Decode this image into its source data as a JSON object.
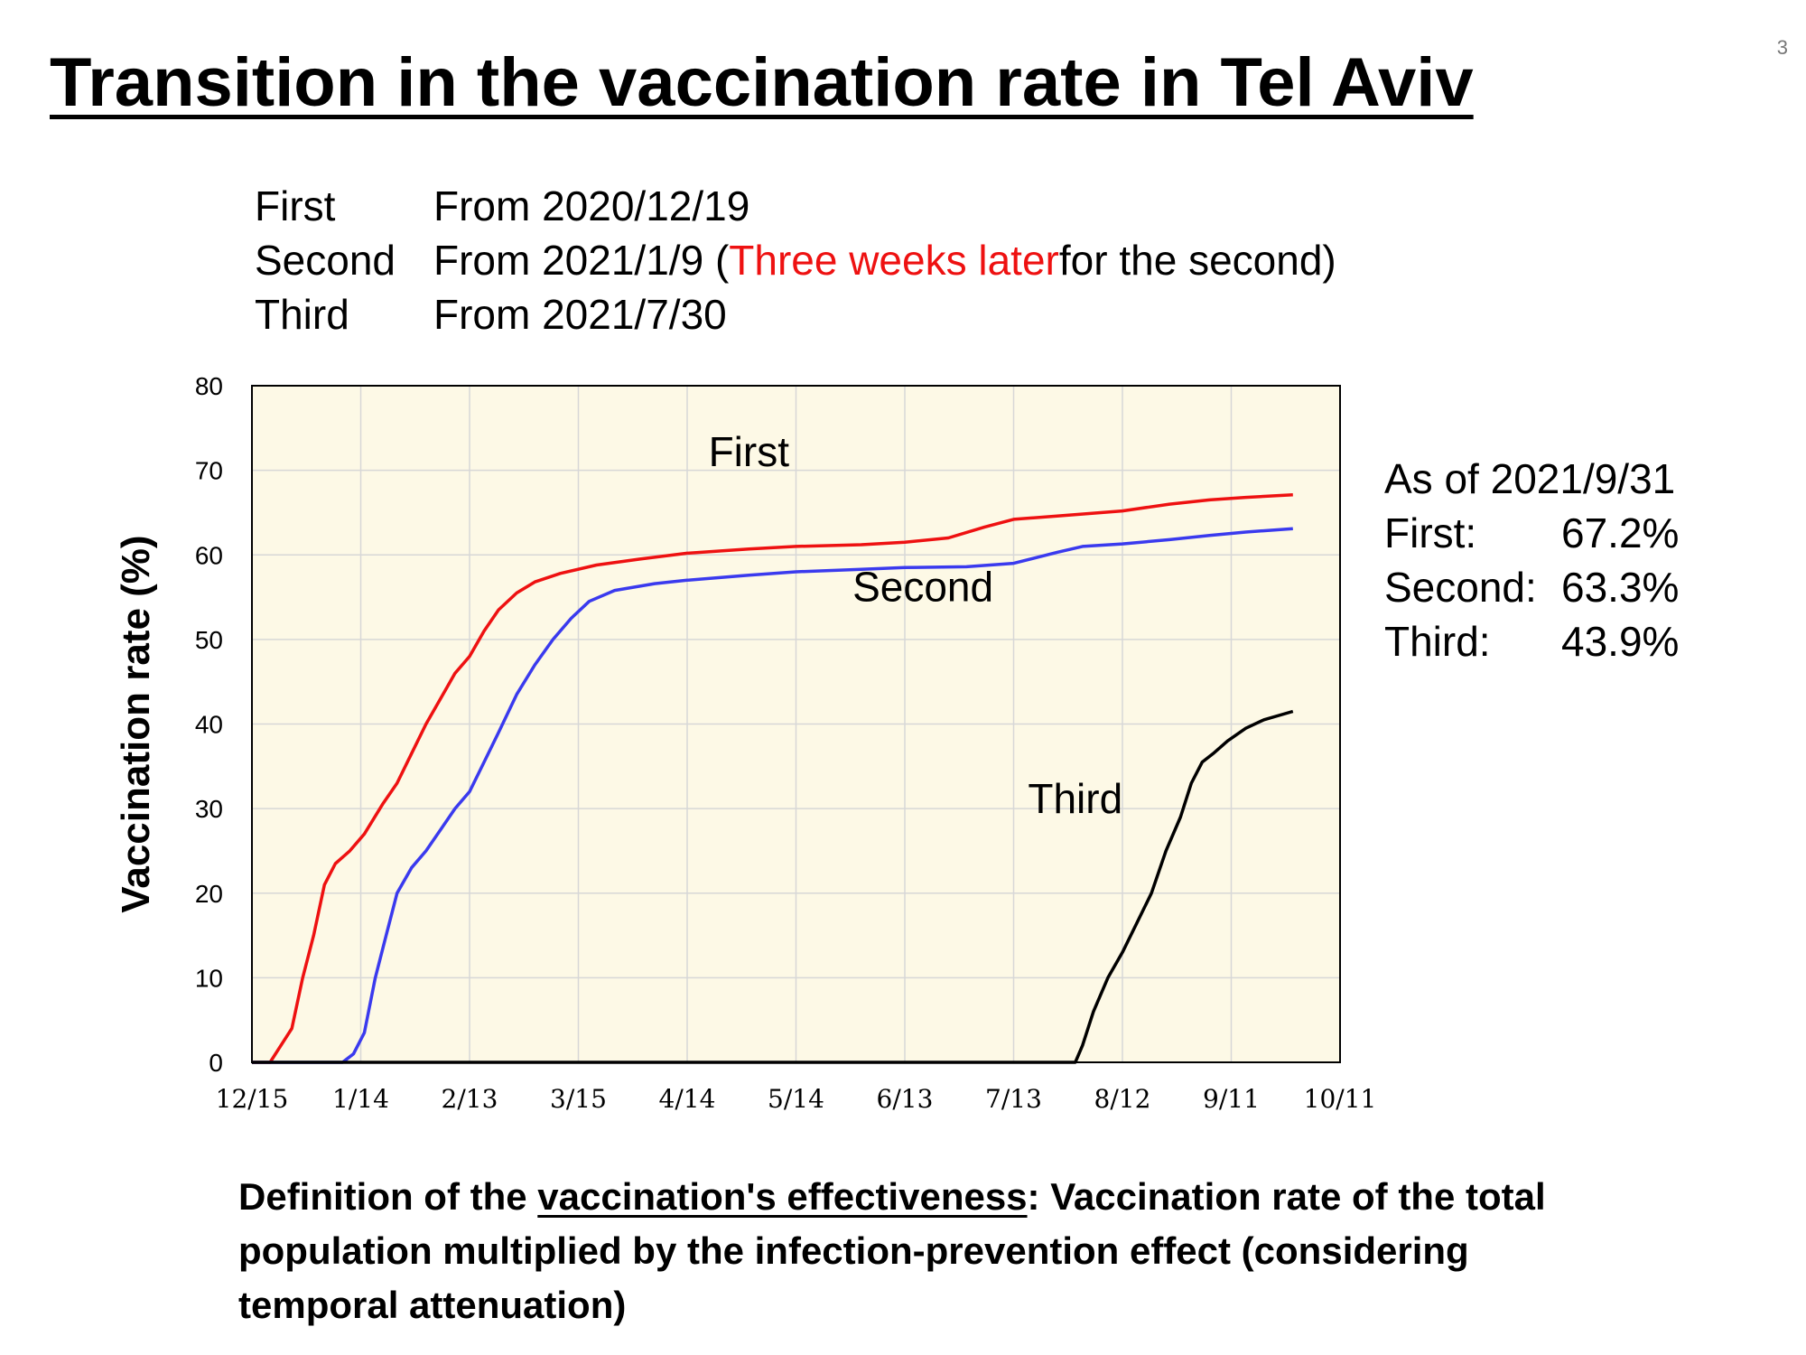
{
  "page_number": "3",
  "title": "Transition in the vaccination rate in Tel Aviv",
  "schedule": [
    {
      "dose": "First",
      "pre": "From 2020/12/19",
      "red": "",
      "post": ""
    },
    {
      "dose": "Second",
      "pre": "From 2021/1/9 (",
      "red": "Three weeks later",
      "post": " for the second)"
    },
    {
      "dose": "Third",
      "pre": "From 2021/7/30",
      "red": "",
      "post": ""
    }
  ],
  "summary": {
    "heading": "As of 2021/9/31",
    "rows": [
      {
        "label": "First:",
        "value": "67.2%"
      },
      {
        "label": "Second:",
        "value": "63.3%"
      },
      {
        "label": "Third:",
        "value": "43.9%"
      }
    ]
  },
  "definition": {
    "pre": "Definition of the ",
    "underlined": "vaccination's effectiveness",
    "post": ": Vaccination rate of the total population multiplied by the infection-prevention effect (considering temporal attenuation)"
  },
  "colors": {
    "plot_background": "#fdf9e6",
    "grid": "#d7d7d7",
    "first": "#ee1111",
    "second": "#3a3aee",
    "third": "#000000"
  },
  "chart_data": {
    "type": "line",
    "ylabel": "Vaccination rate (%)",
    "ylim": [
      0,
      80
    ],
    "yticks": [
      0,
      10,
      20,
      30,
      40,
      50,
      60,
      70,
      80
    ],
    "xlim": [
      "2020-12-15",
      "2021-10-11"
    ],
    "xticks": [
      {
        "date": "2020-12-15",
        "label": "12/15"
      },
      {
        "date": "2021-01-14",
        "label": "1/14"
      },
      {
        "date": "2021-02-13",
        "label": "2/13"
      },
      {
        "date": "2021-03-15",
        "label": "3/15"
      },
      {
        "date": "2021-04-14",
        "label": "4/14"
      },
      {
        "date": "2021-05-14",
        "label": "5/14"
      },
      {
        "date": "2021-06-13",
        "label": "6/13"
      },
      {
        "date": "2021-07-13",
        "label": "7/13"
      },
      {
        "date": "2021-08-12",
        "label": "8/12"
      },
      {
        "date": "2021-09-11",
        "label": "9/11"
      },
      {
        "date": "2021-10-11",
        "label": "10/11"
      }
    ],
    "grid": true,
    "series": [
      {
        "name": "First",
        "points": [
          [
            "2020-12-20",
            0
          ],
          [
            "2020-12-23",
            2
          ],
          [
            "2020-12-26",
            4
          ],
          [
            "2020-12-29",
            10
          ],
          [
            "2021-01-01",
            15
          ],
          [
            "2021-01-04",
            21
          ],
          [
            "2021-01-07",
            23.5
          ],
          [
            "2021-01-11",
            25
          ],
          [
            "2021-01-15",
            27
          ],
          [
            "2021-01-20",
            30.5
          ],
          [
            "2021-01-24",
            33
          ],
          [
            "2021-01-28",
            36.5
          ],
          [
            "2021-02-01",
            40
          ],
          [
            "2021-02-05",
            43
          ],
          [
            "2021-02-09",
            46
          ],
          [
            "2021-02-13",
            48
          ],
          [
            "2021-02-17",
            51
          ],
          [
            "2021-02-21",
            53.5
          ],
          [
            "2021-02-26",
            55.5
          ],
          [
            "2021-03-03",
            56.8
          ],
          [
            "2021-03-10",
            57.8
          ],
          [
            "2021-03-20",
            58.8
          ],
          [
            "2021-04-01",
            59.5
          ],
          [
            "2021-04-14",
            60.2
          ],
          [
            "2021-05-01",
            60.7
          ],
          [
            "2021-05-14",
            61
          ],
          [
            "2021-06-01",
            61.2
          ],
          [
            "2021-06-13",
            61.5
          ],
          [
            "2021-06-25",
            62
          ],
          [
            "2021-07-05",
            63.3
          ],
          [
            "2021-07-13",
            64.2
          ],
          [
            "2021-07-25",
            64.6
          ],
          [
            "2021-08-12",
            65.2
          ],
          [
            "2021-08-25",
            66
          ],
          [
            "2021-09-05",
            66.5
          ],
          [
            "2021-09-15",
            66.8
          ],
          [
            "2021-09-28",
            67.1
          ]
        ]
      },
      {
        "name": "Second",
        "points": [
          [
            "2021-01-09",
            0
          ],
          [
            "2021-01-12",
            1
          ],
          [
            "2021-01-15",
            3.5
          ],
          [
            "2021-01-18",
            10
          ],
          [
            "2021-01-21",
            15
          ],
          [
            "2021-01-24",
            20
          ],
          [
            "2021-01-28",
            23
          ],
          [
            "2021-02-01",
            25
          ],
          [
            "2021-02-05",
            27.5
          ],
          [
            "2021-02-09",
            30
          ],
          [
            "2021-02-13",
            32
          ],
          [
            "2021-02-17",
            35.5
          ],
          [
            "2021-02-21",
            39
          ],
          [
            "2021-02-26",
            43.5
          ],
          [
            "2021-03-03",
            47
          ],
          [
            "2021-03-08",
            50
          ],
          [
            "2021-03-13",
            52.5
          ],
          [
            "2021-03-18",
            54.5
          ],
          [
            "2021-03-25",
            55.8
          ],
          [
            "2021-04-05",
            56.6
          ],
          [
            "2021-04-14",
            57
          ],
          [
            "2021-05-01",
            57.6
          ],
          [
            "2021-05-14",
            58
          ],
          [
            "2021-06-01",
            58.3
          ],
          [
            "2021-06-13",
            58.5
          ],
          [
            "2021-06-30",
            58.6
          ],
          [
            "2021-07-13",
            59
          ],
          [
            "2021-07-25",
            60.3
          ],
          [
            "2021-08-01",
            61
          ],
          [
            "2021-08-12",
            61.3
          ],
          [
            "2021-08-25",
            61.8
          ],
          [
            "2021-09-05",
            62.3
          ],
          [
            "2021-09-15",
            62.7
          ],
          [
            "2021-09-28",
            63.1
          ]
        ]
      },
      {
        "name": "Third",
        "points": [
          [
            "2021-07-30",
            0
          ],
          [
            "2021-08-01",
            2
          ],
          [
            "2021-08-04",
            6
          ],
          [
            "2021-08-08",
            10
          ],
          [
            "2021-08-12",
            13
          ],
          [
            "2021-08-16",
            16.5
          ],
          [
            "2021-08-20",
            20
          ],
          [
            "2021-08-24",
            25
          ],
          [
            "2021-08-28",
            29
          ],
          [
            "2021-08-31",
            33
          ],
          [
            "2021-09-03",
            35.5
          ],
          [
            "2021-09-06",
            36.5
          ],
          [
            "2021-09-10",
            38
          ],
          [
            "2021-09-15",
            39.5
          ],
          [
            "2021-09-20",
            40.5
          ],
          [
            "2021-09-28",
            41.5
          ]
        ]
      }
    ],
    "annotations": [
      {
        "text": "First",
        "date": "2021-05-01",
        "y": 70.5
      },
      {
        "text": "Second",
        "date": "2021-06-18",
        "y": 54.5
      },
      {
        "text": "Third",
        "date": "2021-07-30",
        "y": 29.5
      }
    ]
  }
}
